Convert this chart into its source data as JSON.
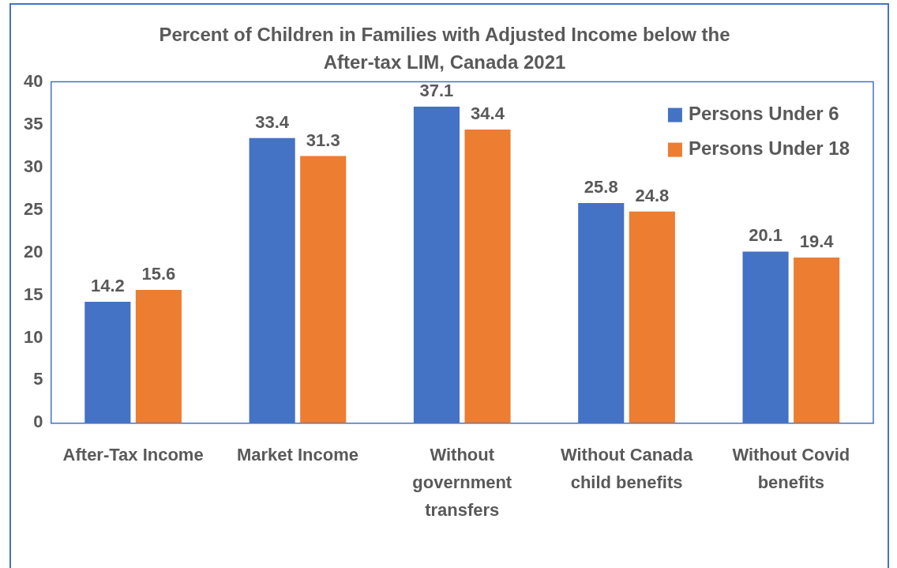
{
  "chart_data": {
    "type": "bar",
    "title": "Percent of Children in Families with Adjusted Income below the After-tax LIM, Canada 2021",
    "categories": [
      "After-Tax Income",
      "Market Income",
      "Without government transfers",
      "Without Canada child benefits",
      "Without Covid benefits"
    ],
    "series": [
      {
        "name": "Persons Under 6",
        "color": "#4472c4",
        "values": [
          14.2,
          33.4,
          37.1,
          25.8,
          20.1
        ]
      },
      {
        "name": "Persons Under 18",
        "color": "#ed7d31",
        "values": [
          15.6,
          31.3,
          34.4,
          24.8,
          19.4
        ]
      }
    ],
    "ylim": [
      0,
      40
    ],
    "yticks": [
      0,
      5,
      10,
      15,
      20,
      25,
      30,
      35,
      40
    ],
    "grid": false,
    "legend": "top right",
    "data_labels": true
  }
}
